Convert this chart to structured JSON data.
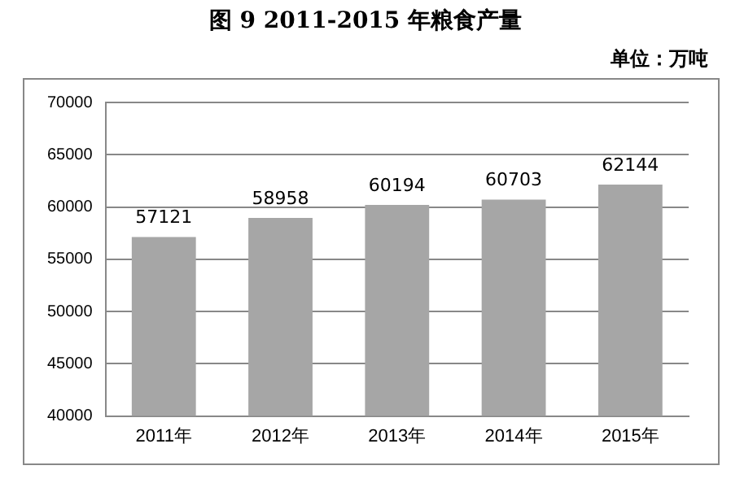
{
  "chart_data": {
    "type": "bar",
    "title": "图 9   2011-2015 年粮食产量",
    "annotations": [
      "单位：万吨"
    ],
    "categories": [
      "2011年",
      "2012年",
      "2013年",
      "2014年",
      "2015年"
    ],
    "values": [
      57121,
      58958,
      60194,
      60703,
      62144
    ],
    "color": "#a6a6a6",
    "ylim": [
      40000,
      70000
    ],
    "yticks": [
      40000,
      45000,
      50000,
      55000,
      60000,
      65000,
      70000
    ],
    "grid": "y",
    "data_labels": true
  }
}
